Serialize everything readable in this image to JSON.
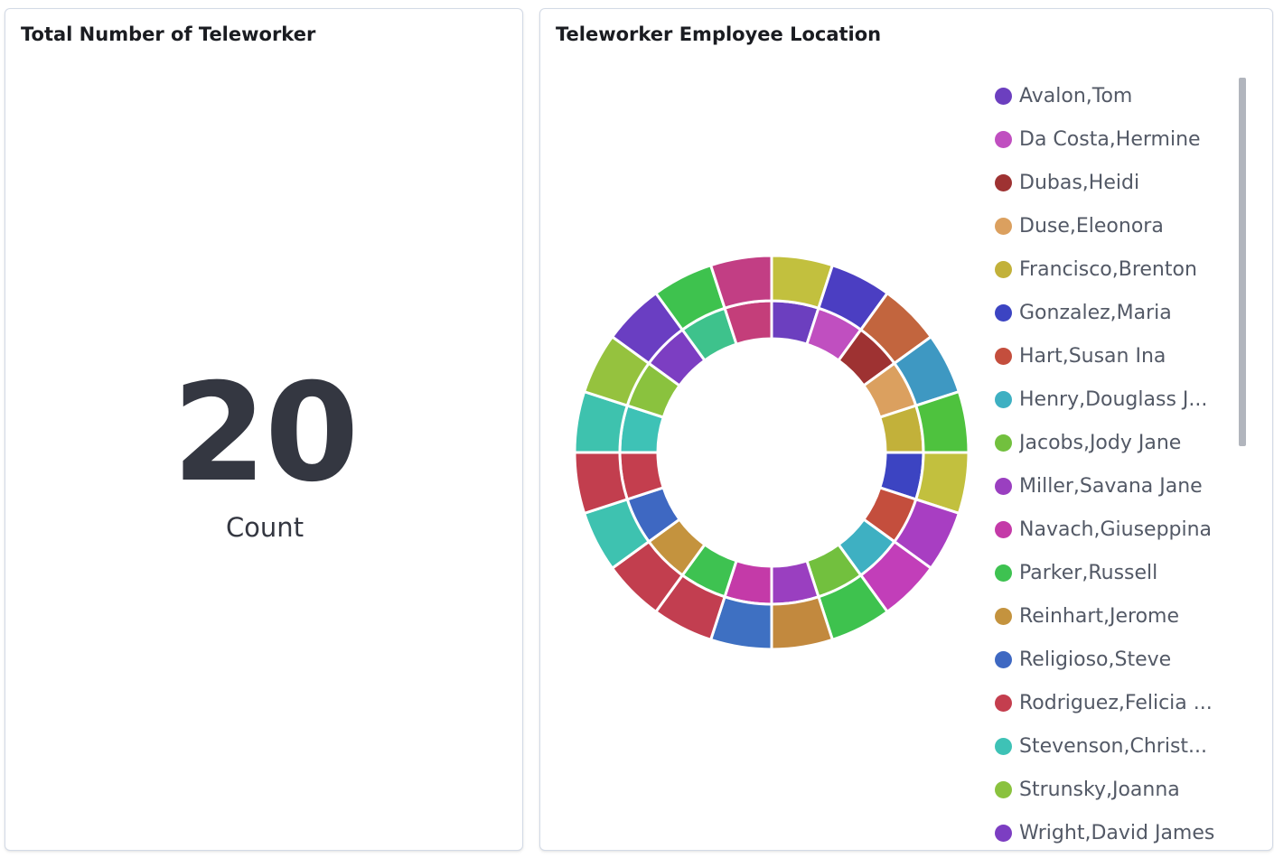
{
  "left_panel": {
    "title": "Total Number of Teleworker",
    "metric": {
      "value": "20",
      "label": "Count"
    }
  },
  "right_panel": {
    "title": "Teleworker Employee Location"
  },
  "legend": {
    "items": [
      {
        "label": "Avalon,Tom",
        "color": "#6c3fbf"
      },
      {
        "label": "Da Costa,Hermine",
        "color": "#c04fc0"
      },
      {
        "label": "Dubas,Heidi",
        "color": "#9e3232"
      },
      {
        "label": "Duse,Eleonora",
        "color": "#dba05f"
      },
      {
        "label": "Francisco,Brenton",
        "color": "#c2b13a"
      },
      {
        "label": "Gonzalez,Maria",
        "color": "#3c44c2"
      },
      {
        "label": "Hart,Susan Ina",
        "color": "#c44e3d"
      },
      {
        "label": "Henry,Douglass J...",
        "color": "#3eb0c2"
      },
      {
        "label": "Jacobs,Jody Jane",
        "color": "#72c03e"
      },
      {
        "label": "Miller,Savana Jane",
        "color": "#9a3fc0"
      },
      {
        "label": "Navach,Giuseppina",
        "color": "#c43aa8"
      },
      {
        "label": "Parker,Russell",
        "color": "#3ec251"
      },
      {
        "label": "Reinhart,Jerome",
        "color": "#c4933e"
      },
      {
        "label": "Religioso,Steve",
        "color": "#3e68c2"
      },
      {
        "label": "Rodriguez,Felicia ...",
        "color": "#c43e4e"
      },
      {
        "label": "Stevenson,Christ...",
        "color": "#3ec2b6"
      },
      {
        "label": "Strunsky,Joanna",
        "color": "#8ac23e"
      },
      {
        "label": "Wright,David James",
        "color": "#7c3ec2"
      }
    ]
  },
  "chart_data": {
    "type": "pie",
    "inner_ring": {
      "values": [
        1,
        1,
        1,
        1,
        1,
        1,
        1,
        1,
        1,
        1,
        1,
        1,
        1,
        1,
        1,
        1,
        1,
        1,
        1,
        1
      ],
      "colors": [
        "#6c3fbf",
        "#c04fc0",
        "#9e3232",
        "#dba05f",
        "#c2b13a",
        "#3c44c2",
        "#c44e3d",
        "#3eb0c2",
        "#72c03e",
        "#9a3fc0",
        "#c43aa8",
        "#3ec251",
        "#c4933e",
        "#3e68c2",
        "#c43e4e",
        "#3ec2b6",
        "#8ac23e",
        "#7c3ec2",
        "#3ec28c",
        "#c43e7a"
      ]
    },
    "outer_ring": {
      "values": [
        1,
        1,
        1,
        1,
        1,
        1,
        1,
        1,
        1,
        1,
        1,
        1,
        1,
        1,
        1,
        1,
        1,
        1,
        1,
        1
      ],
      "colors": [
        "#c2c03e",
        "#4b3ec2",
        "#c2653e",
        "#3e98c2",
        "#4ec23e",
        "#c2c03e",
        "#a83ec2",
        "#c23eb9",
        "#3ec24e",
        "#c2893e",
        "#3e70c2",
        "#c23e50",
        "#c23e4e",
        "#3ec2b0",
        "#c23e4e",
        "#3ec2ae",
        "#95c23e",
        "#6a3ec2",
        "#3ec24e",
        "#c23e84"
      ]
    }
  }
}
